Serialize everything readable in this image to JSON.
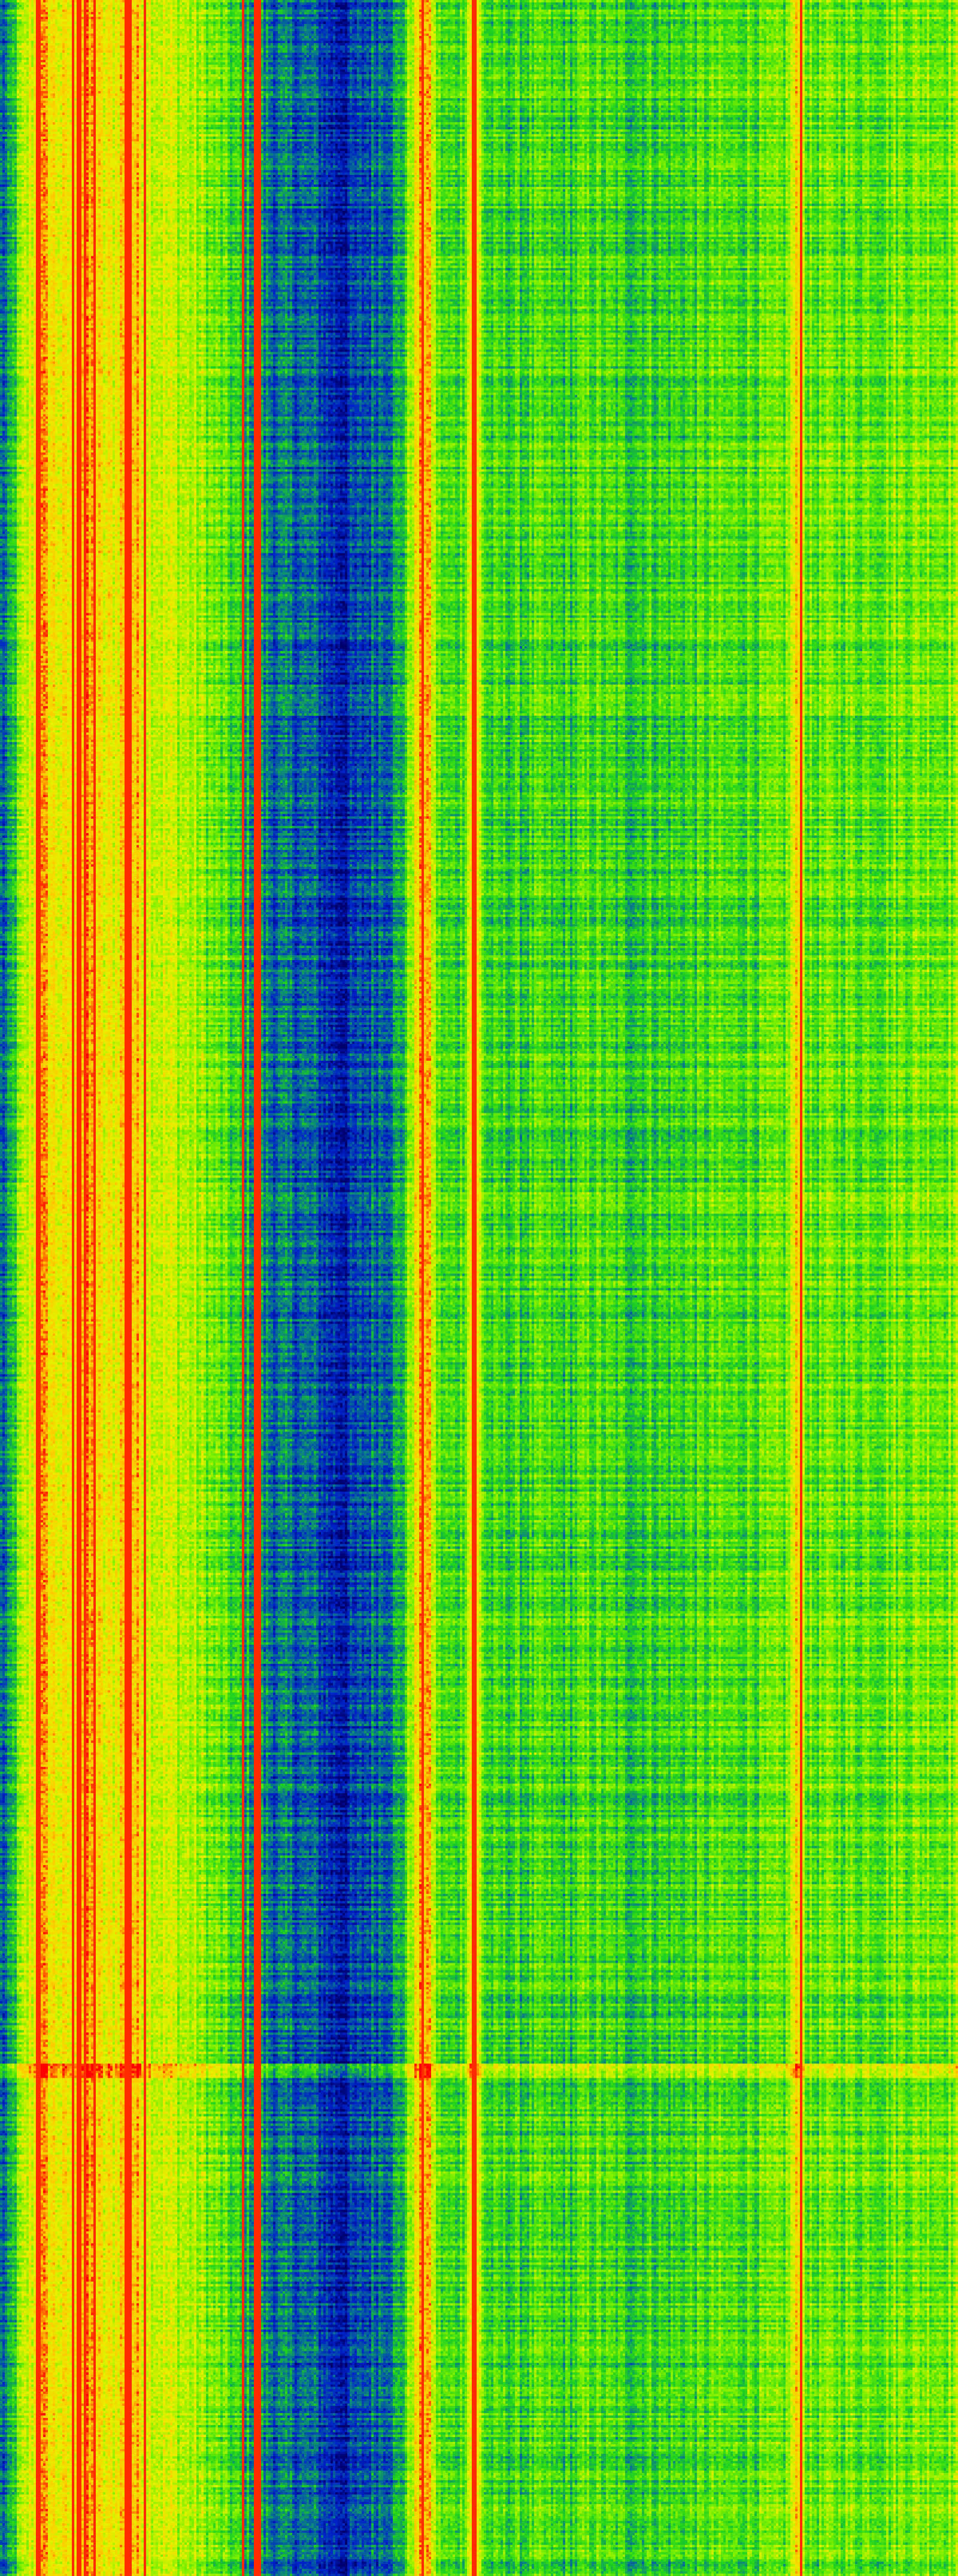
{
  "chart_data": {
    "type": "heatmap",
    "title": "",
    "xlabel": "",
    "ylabel": "",
    "grid": false,
    "legend": "none",
    "colormap": [
      "#00006e",
      "#0022c8",
      "#0a7a8a",
      "#1fd21f",
      "#7ef000",
      "#e6f000",
      "#ffc800",
      "#ff0000"
    ],
    "value_range": [
      0,
      1
    ],
    "column_profile": [
      0.25,
      0.55,
      0.7,
      0.85,
      0.75,
      0.72,
      0.85,
      0.85,
      0.72,
      0.74,
      0.88,
      0.8,
      0.72,
      0.68,
      0.66,
      0.64,
      0.6,
      0.55,
      0.5,
      0.45,
      0.38,
      0.32,
      0.28,
      0.25,
      0.26,
      0.24,
      0.22,
      0.15,
      0.12,
      0.15,
      0.22,
      0.28,
      0.3,
      0.38,
      0.72,
      0.9,
      0.5,
      0.45,
      0.5,
      0.85,
      0.45,
      0.44,
      0.46,
      0.45,
      0.47,
      0.46,
      0.44,
      0.45,
      0.48,
      0.5,
      0.46,
      0.45,
      0.44,
      0.46,
      0.47,
      0.45,
      0.46,
      0.48,
      0.47,
      0.5,
      0.48,
      0.49,
      0.52,
      0.5,
      0.5,
      0.52,
      0.8,
      0.5,
      0.52,
      0.53,
      0.54,
      0.52,
      0.55,
      0.53,
      0.55,
      0.56,
      0.55,
      0.57,
      0.56,
      0.58
    ],
    "high_value_columns": [
      60,
      65,
      120,
      130,
      140,
      155,
      210,
      215,
      240,
      405,
      425,
      430,
      705,
      790,
      1335
    ],
    "high_value_rows": [
      3456
    ]
  }
}
